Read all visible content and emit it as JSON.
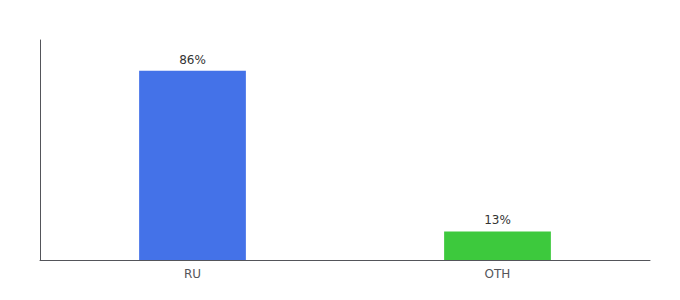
{
  "chart_data": {
    "type": "bar",
    "categories": [
      "RU",
      "OTH"
    ],
    "values": [
      86,
      13
    ],
    "value_labels": [
      "86%",
      "13%"
    ],
    "colors": [
      "#4472e8",
      "#3dc93d"
    ],
    "data_labels": true,
    "ylim": [
      0,
      100
    ],
    "grid": false,
    "tick_labels": "x"
  }
}
